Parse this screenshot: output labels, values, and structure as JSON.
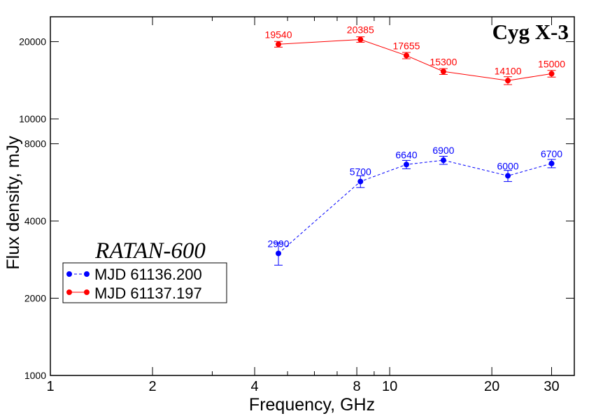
{
  "chart_data": {
    "type": "line",
    "title": "Cyg X-3",
    "annotation": "RATAN-600",
    "xlabel": "Frequency, GHz",
    "ylabel": "Flux  density, mJy",
    "xscale": "log",
    "yscale": "log",
    "xlim": [
      1,
      35
    ],
    "ylim": [
      1000,
      25000
    ],
    "x_ticks": [
      1,
      2,
      4,
      8,
      10,
      20,
      30
    ],
    "x_tick_labels": [
      "1",
      "2",
      "4",
      "8",
      "10",
      "20",
      "30"
    ],
    "x_minor_ticks": [
      3,
      5,
      6,
      7,
      9
    ],
    "y_ticks": [
      1000,
      2000,
      4000,
      8000,
      10000,
      20000
    ],
    "y_tick_labels": [
      "1000",
      "2000",
      "4000",
      "8000",
      "10000",
      "20000"
    ],
    "grid": false,
    "legend_position": "center-left",
    "series": [
      {
        "name": "MJD 61136.200",
        "color": "#0000ff",
        "line_style": "dashed",
        "x": [
          4.7,
          8.2,
          11.2,
          14.4,
          22.3,
          30
        ],
        "values": [
          2990,
          5700,
          6640,
          6900,
          6000,
          6700
        ],
        "errors": [
          300,
          300,
          250,
          250,
          300,
          250
        ],
        "labels": [
          "2990",
          "5700",
          "6640",
          "6900",
          "6000",
          "6700"
        ]
      },
      {
        "name": "MJD 61137.197",
        "color": "#ff0000",
        "line_style": "solid",
        "x": [
          4.7,
          8.2,
          11.2,
          14.4,
          22.3,
          30
        ],
        "values": [
          19540,
          20385,
          17655,
          15300,
          14100,
          15000
        ],
        "errors": [
          500,
          500,
          500,
          400,
          500,
          450
        ],
        "labels": [
          "19540",
          "20385",
          "17655",
          "15300",
          "14100",
          "15000"
        ]
      }
    ]
  }
}
